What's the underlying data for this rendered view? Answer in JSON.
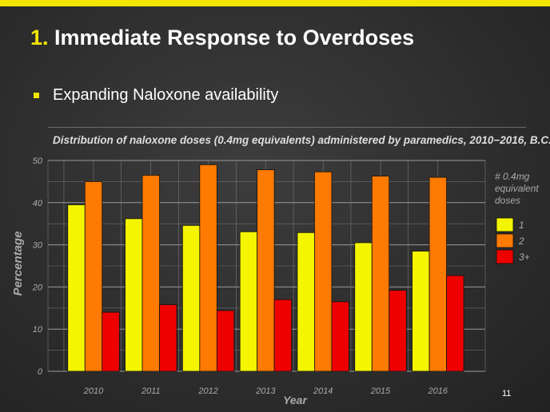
{
  "slide": {
    "title_num": "1.",
    "title_text": "Immediate Response to Overdoses",
    "bullet": "Expanding Naloxone availability",
    "slide_number": "11",
    "accent_color": "#f2e600"
  },
  "chart_data": {
    "type": "bar",
    "title": "Distribution of naloxone doses (0.4mg equivalents) administered by paramedics, 2010−2016, B.C.",
    "xlabel": "Year",
    "ylabel": "Percentage",
    "categories": [
      "2010",
      "2011",
      "2012",
      "2013",
      "2014",
      "2015",
      "2016"
    ],
    "ylim": [
      0,
      50
    ],
    "yticks": [
      "0",
      "10",
      "20",
      "30",
      "40",
      "50"
    ],
    "grid": true,
    "legend_title": "# 0.4mg equivalent doses",
    "legend_position": "right",
    "series": [
      {
        "name": "1",
        "color": "#f5f500",
        "values": [
          39.5,
          36.2,
          34.6,
          33.1,
          32.9,
          30.5,
          28.5
        ]
      },
      {
        "name": "2",
        "color": "#ff7a00",
        "values": [
          45.0,
          46.5,
          49.0,
          47.8,
          47.3,
          46.3,
          46.0
        ]
      },
      {
        "name": "3+",
        "color": "#ee0000",
        "values": [
          14.0,
          15.8,
          14.4,
          17.0,
          16.5,
          19.2,
          22.7
        ]
      }
    ]
  }
}
